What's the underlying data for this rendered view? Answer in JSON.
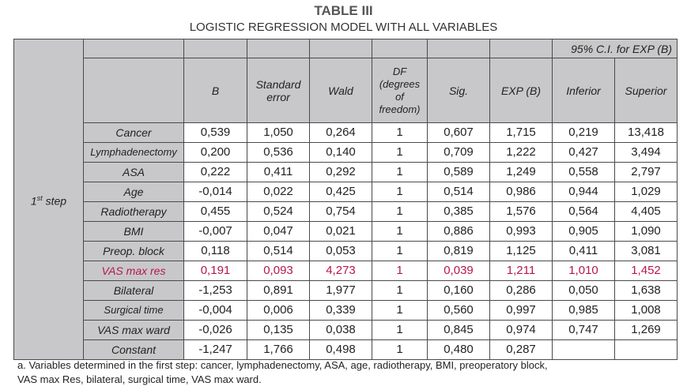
{
  "title": "TABLE III",
  "subtitle": "LOGISTIC REGRESSION MODEL WITH ALL VARIABLES",
  "ci_header": "95% C.I. for EXP (B)",
  "columns": [
    "B",
    "Standard error",
    "Wald",
    "DF (degrees of freedom)",
    "Sig.",
    "EXP (B)",
    "Inferior",
    "Superior"
  ],
  "step_label": "1",
  "step_sup": "st",
  "step_word": " step",
  "highlight_color": "#b5164a",
  "rows": [
    {
      "label": "Cancer",
      "values": [
        "0,539",
        "1,050",
        "0,264",
        "1",
        "0,607",
        "1,715",
        "0,219",
        "13,418"
      ]
    },
    {
      "label": "Lymphadenectomy",
      "values": [
        "0,200",
        "0,536",
        "0,140",
        "1",
        "0,709",
        "1,222",
        "0,427",
        "3,494"
      ]
    },
    {
      "label": "ASA",
      "values": [
        "0,222",
        "0,411",
        "0,292",
        "1",
        "0,589",
        "1,249",
        "0,558",
        "2,797"
      ]
    },
    {
      "label": "Age",
      "values": [
        "-0,014",
        "0,022",
        "0,425",
        "1",
        "0,514",
        "0,986",
        "0,944",
        "1,029"
      ]
    },
    {
      "label": "Radiotherapy",
      "values": [
        "0,455",
        "0,524",
        "0,754",
        "1",
        "0,385",
        "1,576",
        "0,564",
        "4,405"
      ]
    },
    {
      "label": "BMI",
      "values": [
        "-0,007",
        "0,047",
        "0,021",
        "1",
        "0,886",
        "0,993",
        "0,905",
        "1,090"
      ]
    },
    {
      "label": "Preop. block",
      "values": [
        "0,118",
        "0,514",
        "0,053",
        "1",
        "0,819",
        "1,125",
        "0,411",
        "3,081"
      ]
    },
    {
      "label": "VAS max res",
      "highlight": true,
      "values": [
        "0,191",
        "0,093",
        "4,273",
        "1",
        "0,039",
        "1,211",
        "1,010",
        "1,452"
      ]
    },
    {
      "label": "Bilateral",
      "values": [
        "-1,253",
        "0,891",
        "1,977",
        "1",
        "0,160",
        "0,286",
        "0,050",
        "1,638"
      ]
    },
    {
      "label": "Surgical time",
      "values": [
        "-0,004",
        "0,006",
        "0,339",
        "1",
        "0,560",
        "0,997",
        "0,985",
        "1,008"
      ]
    },
    {
      "label": "VAS max ward",
      "values": [
        "-0,026",
        "0,135",
        "0,038",
        "1",
        "0,845",
        "0,974",
        "0,747",
        "1,269"
      ]
    },
    {
      "label": "Constant",
      "values": [
        "-1,247",
        "1,766",
        "0,498",
        "1",
        "0,480",
        "0,287",
        "",
        ""
      ]
    }
  ],
  "footnote_line1": "a. Variables determined in the first step: cancer, lymphadenectomy, ASA, age, radiotherapy, BMI, preoperatory block,",
  "footnote_line2": "VAS max Res, bilateral, surgical time, VAS max ward."
}
